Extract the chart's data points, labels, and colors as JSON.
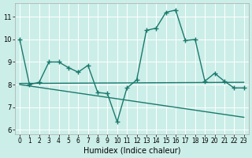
{
  "background_color": "#cceee8",
  "grid_color": "#ffffff",
  "line_color": "#1a7a6e",
  "line_width": 1.0,
  "marker": "+",
  "markersize": 4,
  "markeredgewidth": 1.0,
  "xlabel": "Humidex (Indice chaleur)",
  "xlabel_fontsize": 7,
  "xlim": [
    -0.5,
    23.5
  ],
  "ylim": [
    5.8,
    11.6
  ],
  "yticks": [
    6,
    7,
    8,
    9,
    10,
    11
  ],
  "xticks": [
    0,
    1,
    2,
    3,
    4,
    5,
    6,
    7,
    8,
    9,
    10,
    11,
    12,
    13,
    14,
    15,
    16,
    17,
    18,
    19,
    20,
    21,
    22,
    23
  ],
  "tick_fontsize": 5.5,
  "lines": [
    {
      "x": [
        0,
        1,
        2,
        3,
        4,
        5,
        6,
        7,
        8,
        9,
        10,
        11,
        12,
        13,
        14,
        15,
        16,
        17,
        18,
        19,
        20,
        21,
        22,
        23
      ],
      "y": [
        10.0,
        8.0,
        8.1,
        9.0,
        9.0,
        8.75,
        8.55,
        8.85,
        7.65,
        7.6,
        6.35,
        7.85,
        8.2,
        10.4,
        10.5,
        11.2,
        11.3,
        9.95,
        10.0,
        8.15,
        8.5,
        8.15,
        7.85,
        7.85
      ]
    },
    {
      "x": [
        0,
        23
      ],
      "y": [
        8.05,
        8.1
      ]
    },
    {
      "x": [
        0,
        23
      ],
      "y": [
        8.0,
        6.55
      ]
    }
  ]
}
